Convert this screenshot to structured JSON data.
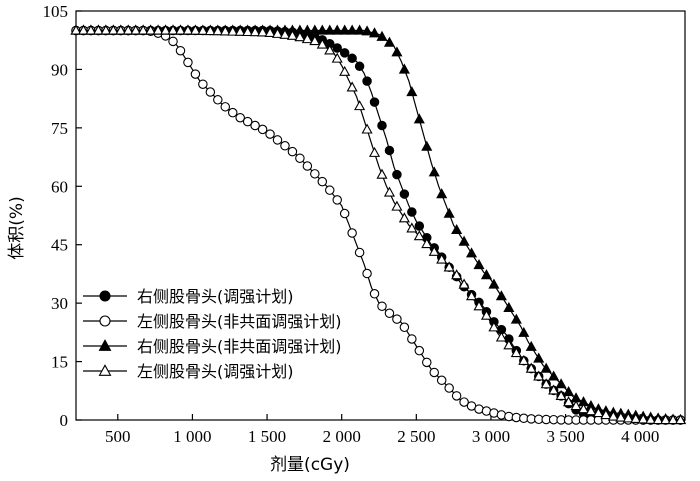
{
  "chart_data": {
    "type": "line",
    "xlabel": "剂量(cGy)",
    "ylabel": "体积(%)",
    "xlim": [
      220,
      4300
    ],
    "ylim": [
      0,
      105
    ],
    "x_ticks": [
      {
        "value": 500,
        "label": "500"
      },
      {
        "value": 1000,
        "label": "1 000"
      },
      {
        "value": 1500,
        "label": "1 500"
      },
      {
        "value": 2000,
        "label": "2 000"
      },
      {
        "value": 2500,
        "label": "2 500"
      },
      {
        "value": 3000,
        "label": "3 000"
      },
      {
        "value": 3500,
        "label": "3 500"
      },
      {
        "value": 4000,
        "label": "4 000"
      }
    ],
    "y_ticks": [
      {
        "value": 0,
        "label": "0"
      },
      {
        "value": 15,
        "label": "15"
      },
      {
        "value": 30,
        "label": "30"
      },
      {
        "value": 45,
        "label": "45"
      },
      {
        "value": 60,
        "label": "60"
      },
      {
        "value": 75,
        "label": "75"
      },
      {
        "value": 90,
        "label": "90"
      },
      {
        "value": 105,
        "label": "105"
      }
    ],
    "grid": false,
    "legend_position": "bottom-left",
    "series": [
      {
        "name": "右侧股骨头(调强计划)",
        "marker": "circle",
        "filled": true,
        "color": "#000000",
        "points": [
          [
            220,
            100
          ],
          [
            500,
            100
          ],
          [
            1000,
            100
          ],
          [
            1500,
            100
          ],
          [
            1700,
            99.5
          ],
          [
            1850,
            98
          ],
          [
            1950,
            96
          ],
          [
            2030,
            94
          ],
          [
            2100,
            92
          ],
          [
            2150,
            89
          ],
          [
            2200,
            84
          ],
          [
            2250,
            78
          ],
          [
            2300,
            72
          ],
          [
            2350,
            65
          ],
          [
            2400,
            60
          ],
          [
            2450,
            55
          ],
          [
            2500,
            51
          ],
          [
            2550,
            48
          ],
          [
            2600,
            45
          ],
          [
            2650,
            43
          ],
          [
            2700,
            40
          ],
          [
            2750,
            38
          ],
          [
            2800,
            35
          ],
          [
            2850,
            33
          ],
          [
            2900,
            31
          ],
          [
            2950,
            29
          ],
          [
            3000,
            26
          ],
          [
            3050,
            24
          ],
          [
            3100,
            22
          ],
          [
            3150,
            19
          ],
          [
            3200,
            16
          ],
          [
            3250,
            14
          ],
          [
            3300,
            12
          ],
          [
            3350,
            10
          ],
          [
            3400,
            8
          ],
          [
            3450,
            7
          ],
          [
            3500,
            5
          ],
          [
            3550,
            3
          ],
          [
            3600,
            2
          ],
          [
            3650,
            1
          ],
          [
            3700,
            0.5
          ],
          [
            3800,
            0.2
          ],
          [
            4000,
            0
          ],
          [
            4300,
            0
          ]
        ]
      },
      {
        "name": "左侧股骨头(非共面调强计划)",
        "marker": "circle",
        "filled": false,
        "color": "#000000",
        "points": [
          [
            220,
            100
          ],
          [
            500,
            100
          ],
          [
            700,
            100
          ],
          [
            800,
            99
          ],
          [
            850,
            98
          ],
          [
            900,
            96
          ],
          [
            950,
            93
          ],
          [
            1000,
            90
          ],
          [
            1050,
            87
          ],
          [
            1100,
            85
          ],
          [
            1200,
            81
          ],
          [
            1300,
            78
          ],
          [
            1400,
            76
          ],
          [
            1500,
            74
          ],
          [
            1600,
            71
          ],
          [
            1700,
            68
          ],
          [
            1800,
            64
          ],
          [
            1900,
            60
          ],
          [
            2000,
            55
          ],
          [
            2050,
            50
          ],
          [
            2100,
            45
          ],
          [
            2150,
            40
          ],
          [
            2200,
            34
          ],
          [
            2250,
            30
          ],
          [
            2300,
            28
          ],
          [
            2400,
            25
          ],
          [
            2450,
            22
          ],
          [
            2500,
            19
          ],
          [
            2550,
            16
          ],
          [
            2600,
            13
          ],
          [
            2650,
            11
          ],
          [
            2700,
            9
          ],
          [
            2750,
            7
          ],
          [
            2800,
            5
          ],
          [
            2850,
            4
          ],
          [
            2900,
            3
          ],
          [
            3000,
            2
          ],
          [
            3100,
            1
          ],
          [
            3200,
            0.5
          ],
          [
            3300,
            0.2
          ],
          [
            3500,
            0
          ],
          [
            4300,
            0
          ]
        ]
      },
      {
        "name": "右侧股骨头(非共面调强计划)",
        "marker": "triangle",
        "filled": true,
        "color": "#000000",
        "points": [
          [
            220,
            100
          ],
          [
            1000,
            100
          ],
          [
            2000,
            100
          ],
          [
            2150,
            100
          ],
          [
            2250,
            99
          ],
          [
            2350,
            96
          ],
          [
            2400,
            92
          ],
          [
            2450,
            87
          ],
          [
            2500,
            80
          ],
          [
            2550,
            73
          ],
          [
            2600,
            66
          ],
          [
            2650,
            60
          ],
          [
            2700,
            55
          ],
          [
            2750,
            50
          ],
          [
            2800,
            47
          ],
          [
            2850,
            44
          ],
          [
            2900,
            41
          ],
          [
            2950,
            38
          ],
          [
            3000,
            36
          ],
          [
            3050,
            33
          ],
          [
            3100,
            30
          ],
          [
            3150,
            27
          ],
          [
            3200,
            24
          ],
          [
            3250,
            20
          ],
          [
            3300,
            17
          ],
          [
            3350,
            14
          ],
          [
            3400,
            12
          ],
          [
            3450,
            10
          ],
          [
            3500,
            8
          ],
          [
            3550,
            6
          ],
          [
            3600,
            5
          ],
          [
            3650,
            4
          ],
          [
            3700,
            3
          ],
          [
            3800,
            2
          ],
          [
            3900,
            1.5
          ],
          [
            4000,
            1
          ],
          [
            4100,
            0.5
          ],
          [
            4200,
            0.2
          ],
          [
            4300,
            0
          ]
        ]
      },
      {
        "name": "左侧股骨头(调强计划)",
        "marker": "triangle",
        "filled": false,
        "color": "#000000",
        "points": [
          [
            220,
            100
          ],
          [
            500,
            100
          ],
          [
            1000,
            100
          ],
          [
            1500,
            99.5
          ],
          [
            1700,
            98.5
          ],
          [
            1850,
            97
          ],
          [
            1950,
            94
          ],
          [
            2000,
            91
          ],
          [
            2050,
            87
          ],
          [
            2100,
            83
          ],
          [
            2150,
            77
          ],
          [
            2200,
            71
          ],
          [
            2250,
            65
          ],
          [
            2300,
            60
          ],
          [
            2350,
            56
          ],
          [
            2400,
            53
          ],
          [
            2450,
            50
          ],
          [
            2500,
            48
          ],
          [
            2550,
            46
          ],
          [
            2600,
            44
          ],
          [
            2650,
            42
          ],
          [
            2700,
            40
          ],
          [
            2750,
            38
          ],
          [
            2800,
            36
          ],
          [
            2850,
            33
          ],
          [
            2900,
            30
          ],
          [
            2950,
            28
          ],
          [
            3000,
            25
          ],
          [
            3050,
            22
          ],
          [
            3100,
            20
          ],
          [
            3150,
            18
          ],
          [
            3200,
            16
          ],
          [
            3250,
            14
          ],
          [
            3300,
            12
          ],
          [
            3350,
            10
          ],
          [
            3400,
            8
          ],
          [
            3450,
            7
          ],
          [
            3500,
            5
          ],
          [
            3550,
            4
          ],
          [
            3600,
            3
          ],
          [
            3700,
            2
          ],
          [
            3800,
            1
          ],
          [
            3900,
            0.5
          ],
          [
            4000,
            0.2
          ],
          [
            4100,
            0
          ],
          [
            4300,
            0
          ]
        ]
      }
    ]
  }
}
